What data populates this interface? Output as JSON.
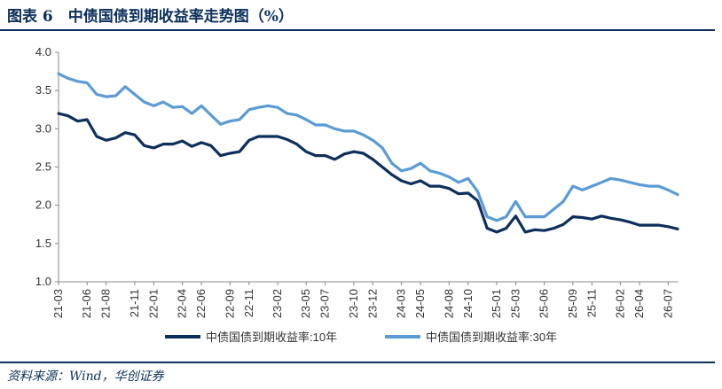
{
  "header": {
    "title": "图表 6　中债国债到期收益率走势图（%）"
  },
  "footer": {
    "source": "资料来源：Wind，华创证券"
  },
  "chart_data": {
    "type": "line",
    "title": "图表 6　中债国债到期收益率走势图（%）",
    "ylim": [
      1.0,
      4.0
    ],
    "yticks": [
      "1.0",
      "1.5",
      "2.0",
      "2.5",
      "3.0",
      "3.5",
      "4.0"
    ],
    "xticks": [
      "21-03",
      "21-06",
      "21-08",
      "21-11",
      "22-01",
      "22-04",
      "22-06",
      "22-09",
      "22-11",
      "23-02",
      "23-05",
      "23-07",
      "23-10",
      "23-12",
      "24-03",
      "24-05",
      "24-08",
      "24-10",
      "25-01",
      "25-03",
      "25-06",
      "25-09",
      "25-11",
      "26-02",
      "26-04",
      "26-07"
    ],
    "legend_position": "bottom",
    "grid": false,
    "colors": {
      "s10": "#0c2f5c",
      "s30": "#5b9bd5",
      "axis": "#888888"
    },
    "series": [
      {
        "name": "中债国债到期收益率:10年",
        "points": [
          [
            "21-03",
            3.2
          ],
          [
            "21-04",
            3.17
          ],
          [
            "21-05",
            3.1
          ],
          [
            "21-06",
            3.12
          ],
          [
            "21-07",
            2.9
          ],
          [
            "21-08",
            2.85
          ],
          [
            "21-09",
            2.88
          ],
          [
            "21-10",
            2.95
          ],
          [
            "21-11",
            2.92
          ],
          [
            "21-12",
            2.78
          ],
          [
            "22-01",
            2.75
          ],
          [
            "22-02",
            2.8
          ],
          [
            "22-03",
            2.8
          ],
          [
            "22-04",
            2.84
          ],
          [
            "22-05",
            2.77
          ],
          [
            "22-06",
            2.82
          ],
          [
            "22-07",
            2.78
          ],
          [
            "22-08",
            2.65
          ],
          [
            "22-09",
            2.68
          ],
          [
            "22-10",
            2.7
          ],
          [
            "22-11",
            2.85
          ],
          [
            "22-12",
            2.9
          ],
          [
            "23-01",
            2.9
          ],
          [
            "23-02",
            2.9
          ],
          [
            "23-03",
            2.86
          ],
          [
            "23-04",
            2.8
          ],
          [
            "23-05",
            2.7
          ],
          [
            "23-06",
            2.65
          ],
          [
            "23-07",
            2.65
          ],
          [
            "23-08",
            2.6
          ],
          [
            "23-09",
            2.67
          ],
          [
            "23-10",
            2.7
          ],
          [
            "23-11",
            2.68
          ],
          [
            "23-12",
            2.6
          ],
          [
            "24-01",
            2.5
          ],
          [
            "24-02",
            2.4
          ],
          [
            "24-03",
            2.32
          ],
          [
            "24-04",
            2.28
          ],
          [
            "24-05",
            2.32
          ],
          [
            "24-06",
            2.25
          ],
          [
            "24-07",
            2.25
          ],
          [
            "24-08",
            2.22
          ],
          [
            "24-09",
            2.15
          ],
          [
            "24-10",
            2.16
          ],
          [
            "24-11",
            2.06
          ],
          [
            "24-12",
            1.7
          ],
          [
            "25-01",
            1.65
          ],
          [
            "25-02",
            1.7
          ],
          [
            "25-03",
            1.86
          ],
          [
            "25-04",
            1.65
          ],
          [
            "25-05",
            1.68
          ],
          [
            "25-06",
            1.67
          ],
          [
            "25-07",
            1.7
          ],
          [
            "25-08",
            1.75
          ],
          [
            "25-09",
            1.85
          ],
          [
            "25-10",
            1.84
          ],
          [
            "25-11",
            1.82
          ],
          [
            "25-12",
            1.86
          ],
          [
            "26-01",
            1.83
          ],
          [
            "26-02",
            1.81
          ],
          [
            "26-03",
            1.78
          ],
          [
            "26-04",
            1.74
          ],
          [
            "26-05",
            1.74
          ],
          [
            "26-06",
            1.74
          ],
          [
            "26-07",
            1.72
          ],
          [
            "26-08",
            1.69
          ]
        ]
      },
      {
        "name": "中债国债到期收益率:30年",
        "points": [
          [
            "21-03",
            3.72
          ],
          [
            "21-04",
            3.66
          ],
          [
            "21-05",
            3.62
          ],
          [
            "21-06",
            3.6
          ],
          [
            "21-07",
            3.45
          ],
          [
            "21-08",
            3.42
          ],
          [
            "21-09",
            3.43
          ],
          [
            "21-10",
            3.55
          ],
          [
            "21-11",
            3.45
          ],
          [
            "21-12",
            3.35
          ],
          [
            "22-01",
            3.3
          ],
          [
            "22-02",
            3.35
          ],
          [
            "22-03",
            3.28
          ],
          [
            "22-04",
            3.29
          ],
          [
            "22-05",
            3.2
          ],
          [
            "22-06",
            3.3
          ],
          [
            "22-07",
            3.18
          ],
          [
            "22-08",
            3.06
          ],
          [
            "22-09",
            3.1
          ],
          [
            "22-10",
            3.12
          ],
          [
            "22-11",
            3.25
          ],
          [
            "22-12",
            3.28
          ],
          [
            "23-01",
            3.3
          ],
          [
            "23-02",
            3.28
          ],
          [
            "23-03",
            3.2
          ],
          [
            "23-04",
            3.18
          ],
          [
            "23-05",
            3.12
          ],
          [
            "23-06",
            3.05
          ],
          [
            "23-07",
            3.05
          ],
          [
            "23-08",
            3.0
          ],
          [
            "23-09",
            2.97
          ],
          [
            "23-10",
            2.97
          ],
          [
            "23-11",
            2.92
          ],
          [
            "23-12",
            2.85
          ],
          [
            "24-01",
            2.75
          ],
          [
            "24-02",
            2.55
          ],
          [
            "24-03",
            2.45
          ],
          [
            "24-04",
            2.48
          ],
          [
            "24-05",
            2.55
          ],
          [
            "24-06",
            2.45
          ],
          [
            "24-07",
            2.42
          ],
          [
            "24-08",
            2.37
          ],
          [
            "24-09",
            2.3
          ],
          [
            "24-10",
            2.35
          ],
          [
            "24-11",
            2.18
          ],
          [
            "24-12",
            1.85
          ],
          [
            "25-01",
            1.8
          ],
          [
            "25-02",
            1.85
          ],
          [
            "25-03",
            2.05
          ],
          [
            "25-04",
            1.85
          ],
          [
            "25-05",
            1.85
          ],
          [
            "25-06",
            1.85
          ],
          [
            "25-07",
            1.95
          ],
          [
            "25-08",
            2.05
          ],
          [
            "25-09",
            2.25
          ],
          [
            "25-10",
            2.2
          ],
          [
            "25-11",
            2.25
          ],
          [
            "25-12",
            2.3
          ],
          [
            "26-01",
            2.35
          ],
          [
            "26-02",
            2.33
          ],
          [
            "26-03",
            2.3
          ],
          [
            "26-04",
            2.27
          ],
          [
            "26-05",
            2.25
          ],
          [
            "26-06",
            2.25
          ],
          [
            "26-07",
            2.2
          ],
          [
            "26-08",
            2.14
          ]
        ]
      }
    ]
  }
}
